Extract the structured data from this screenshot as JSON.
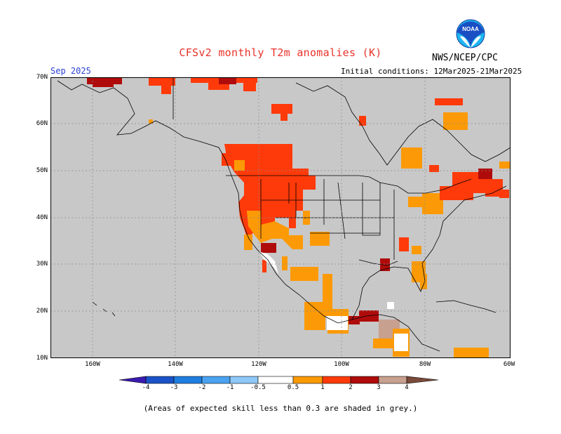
{
  "title": "CFSv2 monthly T2m anomalies (K)",
  "month": "Sep 2025",
  "initial_conditions": "Initial conditions: 12Mar2025-21Mar2025",
  "agency": "NWS/NCEP/CPC",
  "logo": {
    "text": "NOAA",
    "icon": "noaa-logo-icon",
    "colors": [
      "#1a5fd1",
      "#1fb6f2"
    ]
  },
  "map": {
    "background_color": "#c8c8c8",
    "lat_labels": [
      "70N",
      "60N",
      "50N",
      "40N",
      "30N",
      "20N",
      "10N"
    ],
    "lon_labels": [
      "160W",
      "140W",
      "120W",
      "100W",
      "80W",
      "60W"
    ]
  },
  "legend": {
    "labels": [
      "-4",
      "-3",
      "-2",
      "-1",
      "-0.5",
      "0.5",
      "1",
      "2",
      "3",
      "4"
    ],
    "colors": [
      "#3a1ab0",
      "#1a52c8",
      "#1e7ee0",
      "#4aa2f0",
      "#8ec8f8",
      "#ffffff",
      "#fb9a06",
      "#ff3a0a",
      "#b00b0b",
      "#c8a090",
      "#7a4a3a"
    ]
  },
  "note": "(Areas of expected skill less than 0.3 are shaded in grey.)"
}
